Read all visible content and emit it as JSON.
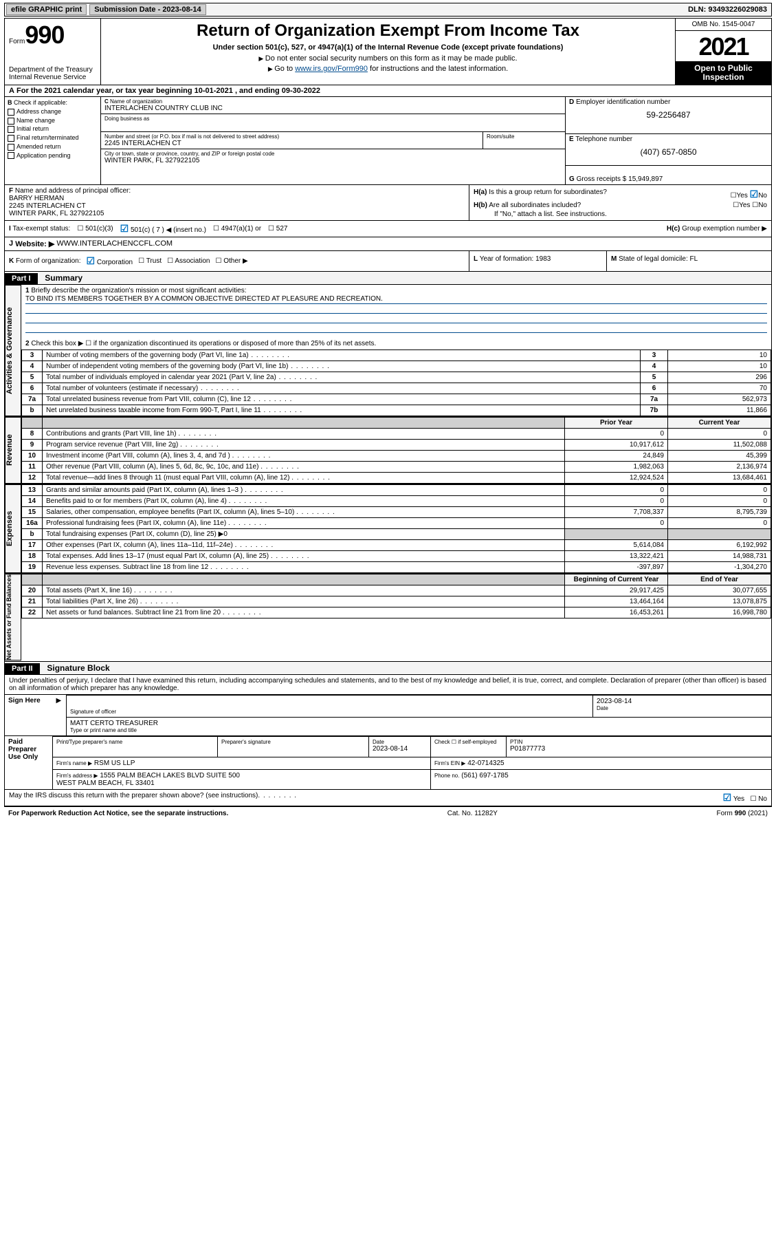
{
  "top": {
    "efile": "efile GRAPHIC print",
    "sub_label": "Submission Date - 2023-08-14",
    "dln": "DLN: 93493226029083"
  },
  "header": {
    "form_label": "Form",
    "form_num": "990",
    "title": "Return of Organization Exempt From Income Tax",
    "sub": "Under section 501(c), 527, or 4947(a)(1) of the Internal Revenue Code (except private foundations)",
    "note1": "Do not enter social security numbers on this form as it may be made public.",
    "note2_pre": "Go to ",
    "note2_link": "www.irs.gov/Form990",
    "note2_post": " for instructions and the latest information.",
    "dept": "Department of the Treasury\nInternal Revenue Service",
    "omb": "OMB No. 1545-0047",
    "year": "2021",
    "open": "Open to Public Inspection"
  },
  "period": {
    "line_a": "For the 2021 calendar year, or tax year beginning 10-01-2021   , and ending 09-30-2022"
  },
  "boxB": {
    "label": "Check if applicable:",
    "items": [
      "Address change",
      "Name change",
      "Initial return",
      "Final return/terminated",
      "Amended return",
      "Application pending"
    ]
  },
  "boxC": {
    "name_label": "Name of organization",
    "name": "INTERLACHEN COUNTRY CLUB INC",
    "dba_label": "Doing business as",
    "addr_label": "Number and street (or P.O. box if mail is not delivered to street address)",
    "room_label": "Room/suite",
    "addr": "2245 INTERLACHEN CT",
    "city_label": "City or town, state or province, country, and ZIP or foreign postal code",
    "city": "WINTER PARK, FL  327922105"
  },
  "boxD": {
    "label": "Employer identification number",
    "val": "59-2256487"
  },
  "boxE": {
    "label": "Telephone number",
    "val": "(407) 657-0850"
  },
  "boxG": {
    "label": "Gross receipts $",
    "val": "15,949,897"
  },
  "boxF": {
    "label": "Name and address of principal officer:",
    "name": "BARRY HERMAN",
    "addr1": "2245 INTERLACHEN CT",
    "addr2": "WINTER PARK, FL  327922105"
  },
  "boxH": {
    "a": "Is this a group return for subordinates?",
    "b": "Are all subordinates included?",
    "b_note": "If \"No,\" attach a list. See instructions.",
    "c": "Group exemption number ▶"
  },
  "statusI": {
    "label": "Tax-exempt status:",
    "opts": [
      "501(c)(3)",
      "501(c) ( 7 ) ◀ (insert no.)",
      "4947(a)(1) or",
      "527"
    ]
  },
  "boxJ": {
    "label": "Website: ▶",
    "val": "WWW.INTERLACHENCCFL.COM"
  },
  "boxK": {
    "label": "Form of organization:",
    "opts": [
      "Corporation",
      "Trust",
      "Association",
      "Other ▶"
    ]
  },
  "boxL": {
    "label": "Year of formation:",
    "val": "1983"
  },
  "boxM": {
    "label": "State of legal domicile:",
    "val": "FL"
  },
  "part1": {
    "hdr": "Part I",
    "title": "Summary",
    "q1": "Briefly describe the organization's mission or most significant activities:",
    "mission": "TO BIND ITS MEMBERS TOGETHER BY A COMMON OBJECTIVE DIRECTED AT PLEASURE AND RECREATION.",
    "q2": "Check this box ▶ ☐  if the organization discontinued its operations or disposed of more than 25% of its net assets.",
    "gov_rows": [
      {
        "n": "3",
        "t": "Number of voting members of the governing body (Part VI, line 1a)",
        "lbl": "3",
        "v": "10"
      },
      {
        "n": "4",
        "t": "Number of independent voting members of the governing body (Part VI, line 1b)",
        "lbl": "4",
        "v": "10"
      },
      {
        "n": "5",
        "t": "Total number of individuals employed in calendar year 2021 (Part V, line 2a)",
        "lbl": "5",
        "v": "296"
      },
      {
        "n": "6",
        "t": "Total number of volunteers (estimate if necessary)",
        "lbl": "6",
        "v": "70"
      },
      {
        "n": "7a",
        "t": "Total unrelated business revenue from Part VIII, column (C), line 12",
        "lbl": "7a",
        "v": "562,973"
      },
      {
        "n": "b",
        "t": "Net unrelated business taxable income from Form 990-T, Part I, line 11",
        "lbl": "7b",
        "v": "11,866"
      }
    ],
    "two_col_hdr": {
      "py": "Prior Year",
      "cy": "Current Year"
    },
    "rev_rows": [
      {
        "n": "8",
        "t": "Contributions and grants (Part VIII, line 1h)",
        "py": "0",
        "cy": "0"
      },
      {
        "n": "9",
        "t": "Program service revenue (Part VIII, line 2g)",
        "py": "10,917,612",
        "cy": "11,502,088"
      },
      {
        "n": "10",
        "t": "Investment income (Part VIII, column (A), lines 3, 4, and 7d )",
        "py": "24,849",
        "cy": "45,399"
      },
      {
        "n": "11",
        "t": "Other revenue (Part VIII, column (A), lines 5, 6d, 8c, 9c, 10c, and 11e)",
        "py": "1,982,063",
        "cy": "2,136,974"
      },
      {
        "n": "12",
        "t": "Total revenue—add lines 8 through 11 (must equal Part VIII, column (A), line 12)",
        "py": "12,924,524",
        "cy": "13,684,461"
      }
    ],
    "exp_rows": [
      {
        "n": "13",
        "t": "Grants and similar amounts paid (Part IX, column (A), lines 1–3 )",
        "py": "0",
        "cy": "0"
      },
      {
        "n": "14",
        "t": "Benefits paid to or for members (Part IX, column (A), line 4)",
        "py": "0",
        "cy": "0"
      },
      {
        "n": "15",
        "t": "Salaries, other compensation, employee benefits (Part IX, column (A), lines 5–10)",
        "py": "7,708,337",
        "cy": "8,795,739"
      },
      {
        "n": "16a",
        "t": "Professional fundraising fees (Part IX, column (A), line 11e)",
        "py": "0",
        "cy": "0"
      },
      {
        "n": "b",
        "t": "Total fundraising expenses (Part IX, column (D), line 25) ▶0",
        "py": "",
        "cy": "",
        "shaded": true
      },
      {
        "n": "17",
        "t": "Other expenses (Part IX, column (A), lines 11a–11d, 11f–24e)",
        "py": "5,614,084",
        "cy": "6,192,992"
      },
      {
        "n": "18",
        "t": "Total expenses. Add lines 13–17 (must equal Part IX, column (A), line 25)",
        "py": "13,322,421",
        "cy": "14,988,731"
      },
      {
        "n": "19",
        "t": "Revenue less expenses. Subtract line 18 from line 12",
        "py": "-397,897",
        "cy": "-1,304,270"
      }
    ],
    "na_hdr": {
      "py": "Beginning of Current Year",
      "cy": "End of Year"
    },
    "na_rows": [
      {
        "n": "20",
        "t": "Total assets (Part X, line 16)",
        "py": "29,917,425",
        "cy": "30,077,655"
      },
      {
        "n": "21",
        "t": "Total liabilities (Part X, line 26)",
        "py": "13,464,164",
        "cy": "13,078,875"
      },
      {
        "n": "22",
        "t": "Net assets or fund balances. Subtract line 21 from line 20",
        "py": "16,453,261",
        "cy": "16,998,780"
      }
    ],
    "side_gov": "Activities & Governance",
    "side_rev": "Revenue",
    "side_exp": "Expenses",
    "side_na": "Net Assets or Fund Balances"
  },
  "part2": {
    "hdr": "Part II",
    "title": "Signature Block",
    "perjury": "Under penalties of perjury, I declare that I have examined this return, including accompanying schedules and statements, and to the best of my knowledge and belief, it is true, correct, and complete. Declaration of preparer (other than officer) is based on all information of which preparer has any knowledge."
  },
  "sign": {
    "side": "Sign Here",
    "sig_label": "Signature of officer",
    "date_label": "Date",
    "date": "2023-08-14",
    "name": "MATT CERTO  TREASURER",
    "name_label": "Type or print name and title"
  },
  "prep": {
    "side": "Paid Preparer Use Only",
    "c1": "Print/Type preparer's name",
    "c2": "Preparer's signature",
    "c3": "Date",
    "c3v": "2023-08-14",
    "c4": "Check ☐ if self-employed",
    "c5": "PTIN",
    "c5v": "P01877773",
    "firm_label": "Firm's name   ▶",
    "firm": "RSM US LLP",
    "ein_label": "Firm's EIN ▶",
    "ein": "42-0714325",
    "addr_label": "Firm's address ▶",
    "addr": "1555 PALM BEACH LAKES BLVD SUITE 500\nWEST PALM BEACH, FL  33401",
    "phone_label": "Phone no.",
    "phone": "(561) 697-1785"
  },
  "discuss": "May the IRS discuss this return with the preparer shown above? (see instructions)",
  "footer": {
    "left": "For Paperwork Reduction Act Notice, see the separate instructions.",
    "mid": "Cat. No. 11282Y",
    "right": "Form 990 (2021)"
  }
}
